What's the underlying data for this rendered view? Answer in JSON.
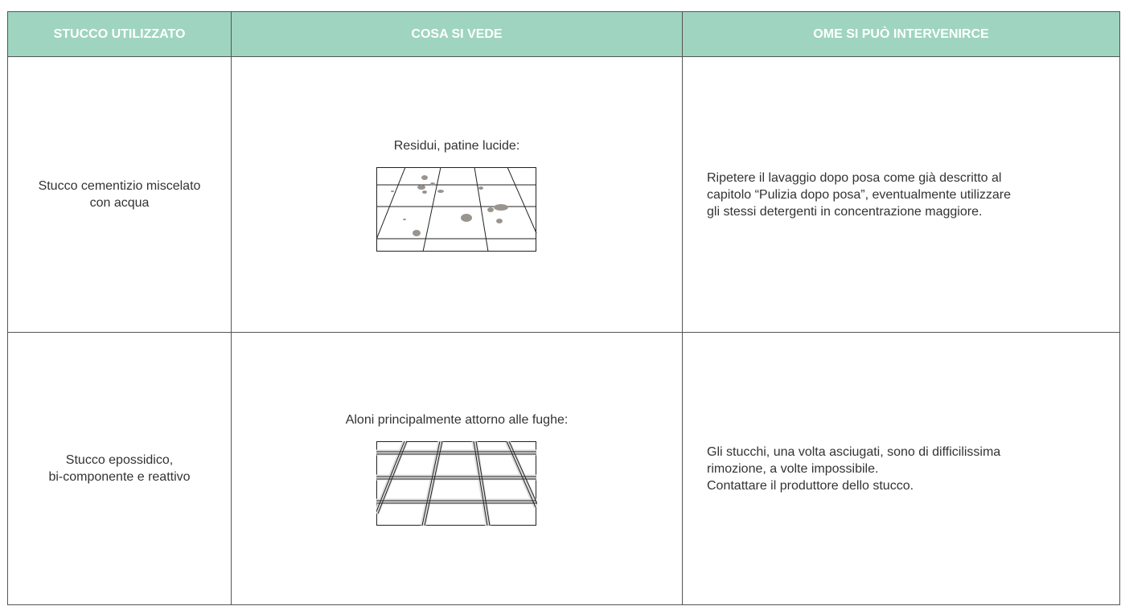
{
  "table": {
    "header": [
      "STUCCO UTILIZZATO",
      "COSA SI VEDE",
      "OME SI PUÒ INTERVENIRCE"
    ],
    "rows": [
      {
        "material": [
          "Stucco cementizio miscelato",
          "con acqua"
        ],
        "observed": "Residui, patine lucide:",
        "remedy": [
          "Ripetere il lavaggio dopo posa come già descritto al",
          "capitolo “Pulizia dopo posa”, eventualmente utilizzare",
          "gli stessi detergenti in concentrazione maggiore."
        ]
      },
      {
        "material": [
          "Stucco epossidico,",
          "bi-componente e reattivo"
        ],
        "observed": "Aloni principalmente attorno alle fughe:",
        "remedy": [
          "Gli stucchi, una volta asciugati, sono di difficilissima",
          "rimozione, a volte impossibile.",
          "Contattare il produttore dello stucco."
        ]
      }
    ]
  }
}
